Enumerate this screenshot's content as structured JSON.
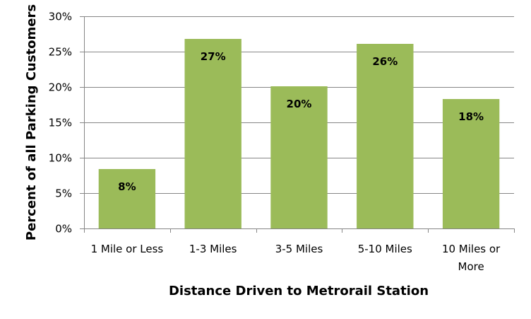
{
  "chart_data": {
    "type": "bar",
    "title": "",
    "xlabel": "Distance Driven to Metrorail Station",
    "ylabel": "Percent of all Parking Customers",
    "categories": [
      "1 Mile or Less",
      "1-3 Miles",
      "3-5 Miles",
      "5-10 Miles",
      "10 Miles or More"
    ],
    "category_lines": [
      [
        "1 Mile or Less"
      ],
      [
        "1-3 Miles"
      ],
      [
        "3-5 Miles"
      ],
      [
        "5-10 Miles"
      ],
      [
        "10 Miles or",
        "More"
      ]
    ],
    "values": [
      8.4,
      26.8,
      20.1,
      26.1,
      18.3
    ],
    "data_labels": [
      "8%",
      "27%",
      "20%",
      "26%",
      "18%"
    ],
    "ylim": [
      0,
      30
    ],
    "yticks": [
      0,
      5,
      10,
      15,
      20,
      25,
      30
    ],
    "ytick_labels": [
      "0%",
      "5%",
      "10%",
      "15%",
      "20%",
      "25%",
      "30%"
    ],
    "grid": true,
    "legend": null,
    "bar_color": "#9BBB59",
    "grid_color": "#868686"
  }
}
